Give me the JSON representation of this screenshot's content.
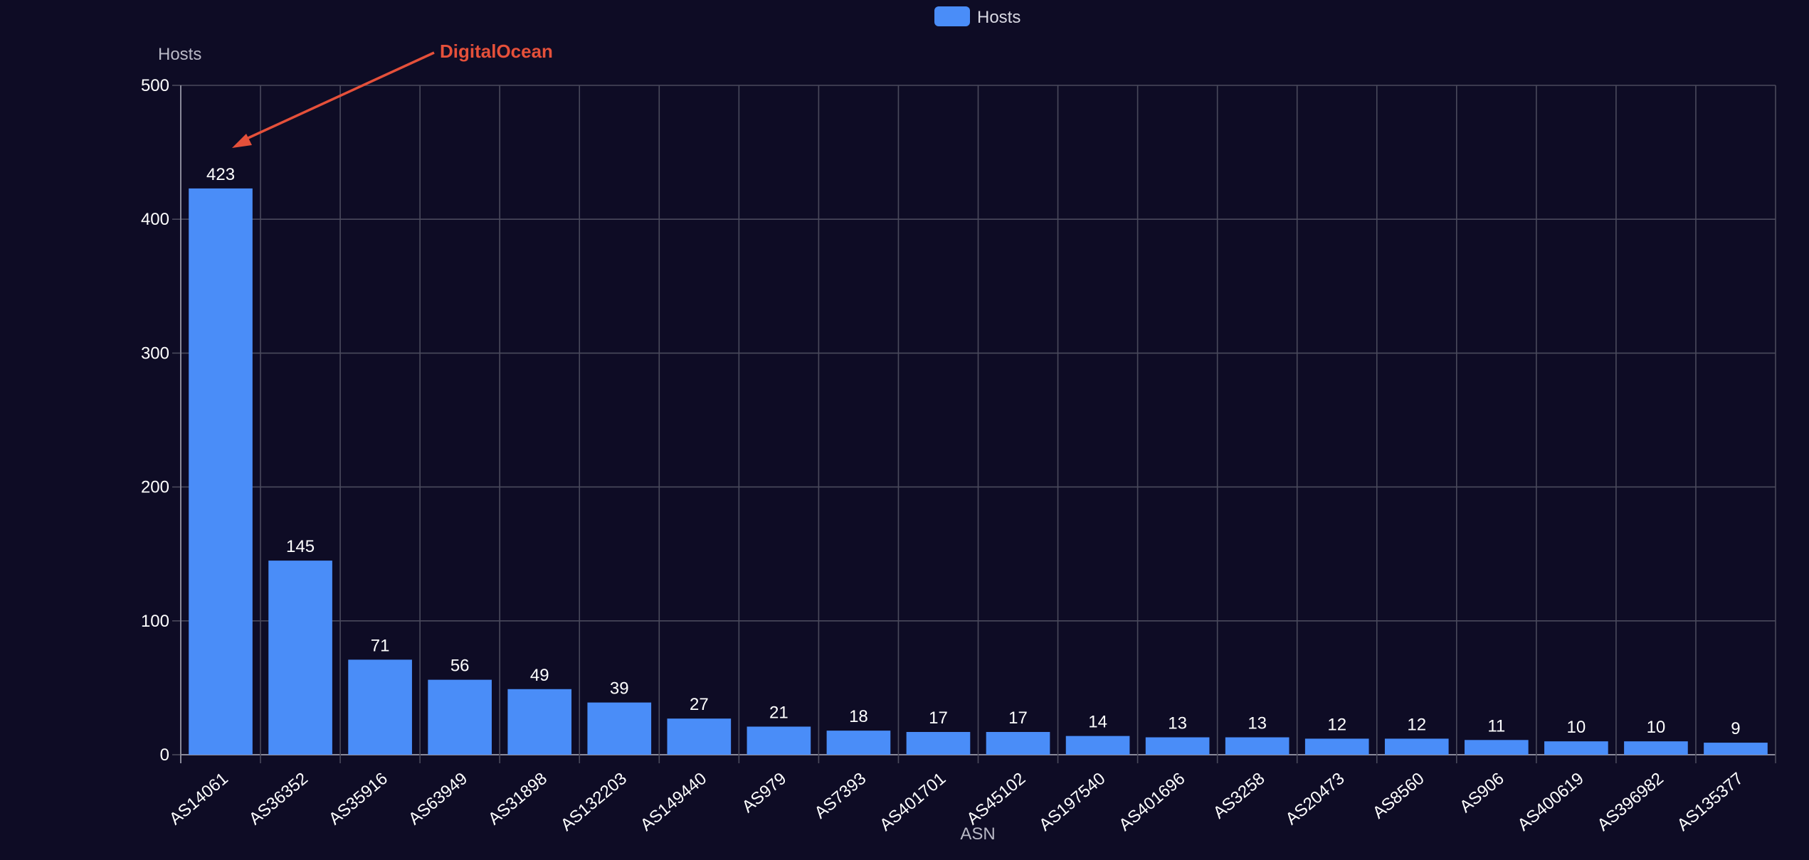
{
  "chart_data": {
    "type": "bar",
    "title": "",
    "legend": {
      "position": "top-center",
      "entries": [
        "Hosts"
      ]
    },
    "xlabel": "ASN",
    "ylabel": "Hosts",
    "ylim": [
      0,
      500
    ],
    "yticks": [
      0,
      100,
      200,
      300,
      400,
      500
    ],
    "grid": true,
    "categories": [
      "AS14061",
      "AS36352",
      "AS35916",
      "AS63949",
      "AS31898",
      "AS132203",
      "AS149440",
      "AS979",
      "AS7393",
      "AS401701",
      "AS45102",
      "AS197540",
      "AS401696",
      "AS3258",
      "AS20473",
      "AS8560",
      "AS906",
      "AS400619",
      "AS396982",
      "AS135377"
    ],
    "series": [
      {
        "name": "Hosts",
        "color": "#4a8df8",
        "values": [
          423,
          145,
          71,
          56,
          49,
          39,
          27,
          21,
          18,
          17,
          17,
          14,
          13,
          13,
          12,
          12,
          11,
          10,
          10,
          9
        ]
      }
    ],
    "annotations": [
      {
        "text": "DigitalOcean",
        "target_category": "AS14061",
        "color": "#e5503a"
      }
    ]
  }
}
